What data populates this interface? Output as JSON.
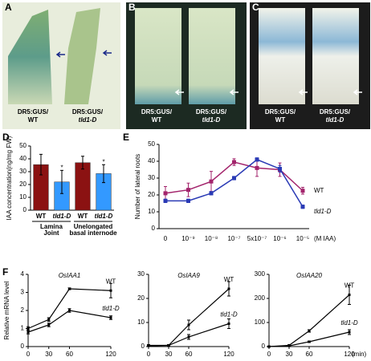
{
  "photo_panels": [
    {
      "label": "A",
      "captions": [
        [
          "DR5:GUS/",
          "WT"
        ],
        [
          "DR5:GUS/",
          "tld1-D"
        ]
      ]
    },
    {
      "label": "B",
      "captions": [
        [
          "DR5:GUS/",
          "WT"
        ],
        [
          "DR5:GUS/",
          "tld1-D"
        ]
      ]
    },
    {
      "label": "C",
      "captions": [
        [
          "DR5:GUS/",
          "WT"
        ],
        [
          "DR5:GUS/",
          "tld1-D"
        ]
      ]
    }
  ],
  "chart_data": [
    {
      "type": "bar",
      "panel": "D",
      "ylabel": "IAA concentration(ng/mg FW)",
      "categories": [
        "WT",
        "tld1-D",
        "WT",
        "tld1-D"
      ],
      "group_labels": [
        [
          "Lamina",
          "Joint"
        ],
        [
          "Unelongated",
          "basal internode"
        ]
      ],
      "values": [
        35.5,
        22,
        37,
        28.5
      ],
      "errors": [
        8,
        9,
        5,
        7
      ],
      "significance": [
        null,
        "*",
        null,
        "*"
      ],
      "colors": [
        "#8b1212",
        "#3399ff",
        "#8b1212",
        "#3399ff"
      ],
      "ylim": [
        0,
        50
      ],
      "yticks": [
        0,
        10,
        20,
        30,
        40,
        50
      ]
    },
    {
      "type": "line",
      "panel": "E",
      "ylabel": "Number of lateral roots",
      "categories": [
        "0",
        "10⁻⁹",
        "10⁻⁸",
        "10⁻⁷",
        "5x10⁻⁷",
        "10⁻⁶",
        "10⁻⁵"
      ],
      "x_unit": "(M IAA)",
      "series": [
        {
          "name": "WT",
          "color": "#a3246c",
          "values": [
            21,
            23,
            28,
            39.5,
            36,
            35,
            22.5
          ],
          "errors": [
            4,
            4,
            6,
            2,
            5,
            4,
            2
          ]
        },
        {
          "name": "tld1-D",
          "color": "#2a3ab5",
          "values": [
            16.5,
            16.5,
            21,
            30,
            41,
            35.5,
            13
          ],
          "errors": [
            1,
            1,
            1,
            1,
            1,
            2,
            1
          ]
        }
      ],
      "ylim": [
        0,
        50
      ],
      "yticks": [
        0,
        10,
        20,
        30,
        40,
        50
      ]
    },
    {
      "type": "line",
      "panel": "F",
      "title": "OsIAA1",
      "ylabel": "Relative mRNA level",
      "x": [
        0,
        30,
        60,
        120
      ],
      "xlim": [
        0,
        120
      ],
      "xticks": [
        0,
        30,
        60,
        120
      ],
      "series": [
        {
          "name": "WT",
          "color": "#000000",
          "values": [
            1,
            1.5,
            3.2,
            3.1
          ],
          "errors": [
            0.1,
            0.1,
            0.05,
            0.4
          ]
        },
        {
          "name": "tld1-D",
          "color": "#000000",
          "values": [
            0.8,
            1.2,
            2.0,
            1.6
          ],
          "errors": [
            0.1,
            0.1,
            0.1,
            0.1
          ]
        }
      ],
      "ylim": [
        0,
        4
      ],
      "yticks": [
        0,
        1,
        2,
        3,
        4
      ]
    },
    {
      "type": "line",
      "title": "OsIAA9",
      "x": [
        0,
        30,
        60,
        120
      ],
      "xlim": [
        0,
        120
      ],
      "xticks": [
        0,
        30,
        60,
        120
      ],
      "series": [
        {
          "name": "WT",
          "color": "#000000",
          "values": [
            0.5,
            0.5,
            9,
            24
          ],
          "errors": [
            0.3,
            0.3,
            2,
            3
          ]
        },
        {
          "name": "tld1-D",
          "color": "#000000",
          "values": [
            0.3,
            0.5,
            4,
            9.5
          ],
          "errors": [
            0.2,
            0.2,
            1,
            2
          ]
        }
      ],
      "ylim": [
        0,
        30
      ],
      "yticks": [
        0,
        10,
        20,
        30
      ]
    },
    {
      "type": "line",
      "title": "OsIAA20",
      "x_unit": "(min)",
      "x": [
        0,
        30,
        60,
        120
      ],
      "xlim": [
        0,
        120
      ],
      "xticks": [
        0,
        30,
        60,
        120
      ],
      "series": [
        {
          "name": "WT",
          "color": "#000000",
          "values": [
            0,
            5,
            65,
            215
          ],
          "errors": [
            2,
            2,
            5,
            40
          ]
        },
        {
          "name": "tld1-D",
          "color": "#000000",
          "values": [
            0,
            3,
            20,
            60
          ],
          "errors": [
            1,
            1,
            3,
            10
          ]
        }
      ],
      "ylim": [
        0,
        300
      ],
      "yticks": [
        0,
        100,
        200,
        300
      ]
    }
  ]
}
